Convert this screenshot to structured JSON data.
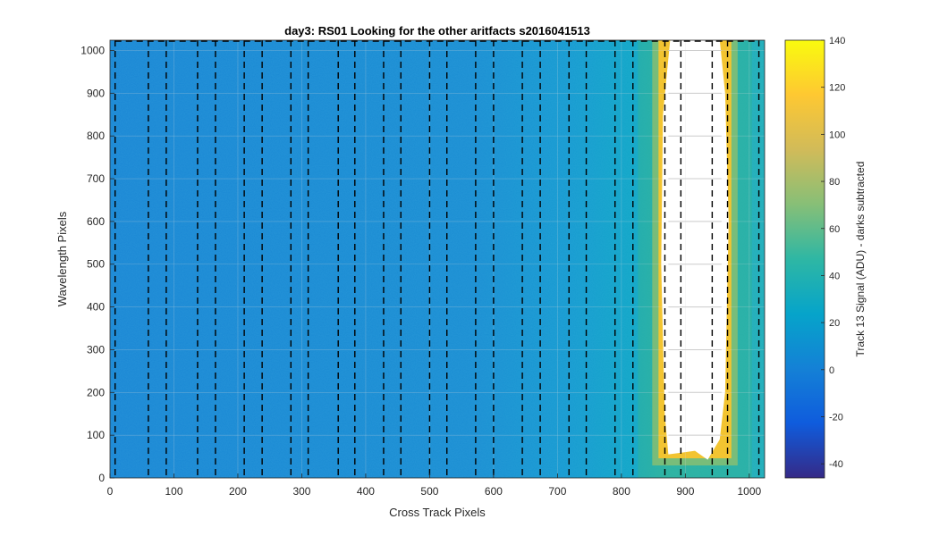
{
  "chart_data": {
    "type": "heatmap",
    "title": "day3: RS01  Looking for the other aritfacts  s2016041513",
    "xlabel": "Cross Track Pixels",
    "ylabel": "Wavelength Pixels",
    "xlim": [
      0,
      1024
    ],
    "ylim": [
      0,
      1024
    ],
    "xticks": [
      0,
      100,
      200,
      300,
      400,
      500,
      600,
      700,
      800,
      900,
      1000
    ],
    "yticks": [
      0,
      100,
      200,
      300,
      400,
      500,
      600,
      700,
      800,
      900,
      1000
    ],
    "grid": true,
    "background_level_adu": 10,
    "saturated_region": {
      "description_values": "white (above color limit) between cross-track pixels",
      "x_range": [
        865,
        965
      ],
      "y_range": [
        55,
        1024
      ]
    },
    "dashed_boundary_lines_x": [
      8,
      60,
      88,
      137,
      165,
      210,
      238,
      283,
      310,
      357,
      383,
      428,
      455,
      500,
      527,
      572,
      600,
      645,
      673,
      718,
      745,
      790,
      818,
      868,
      893,
      942,
      966,
      1015
    ],
    "colorbar": {
      "label": "Track 13 Signal (ADU) - darks subtracted",
      "clim": [
        -46,
        140
      ],
      "ticks": [
        -40,
        -20,
        0,
        20,
        40,
        60,
        80,
        100,
        120,
        140
      ],
      "colormap": "parula",
      "colors": [
        "#352a87",
        "#0f5cdd",
        "#1481d6",
        "#06a4ca",
        "#2eb7a4",
        "#87bf77",
        "#d1bb59",
        "#fec832",
        "#f9fb0e"
      ]
    }
  }
}
